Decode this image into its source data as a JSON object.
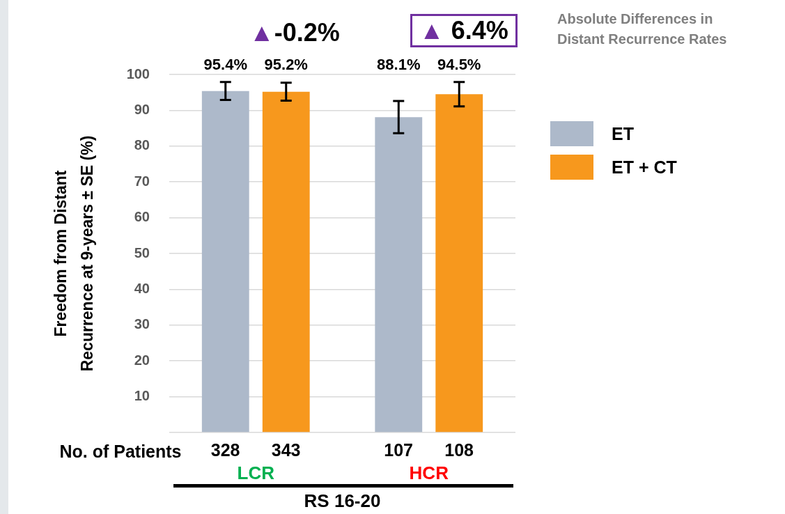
{
  "chart_data": {
    "type": "bar",
    "xlabel": "RS 16-20",
    "ylabel": "Freedom from Distant\nRecurrence at 9-years ± SE (%)",
    "categories": [
      "LCR",
      "HCR"
    ],
    "series": [
      {
        "name": "ET",
        "color": "#adb9ca",
        "values": [
          95.4,
          88.1
        ],
        "errors": [
          2.5,
          4.5
        ],
        "value_labels": [
          "95.4%",
          "88.1%"
        ]
      },
      {
        "name": "ET + CT",
        "color": "#f7981d",
        "values": [
          95.2,
          94.5
        ],
        "errors": [
          2.5,
          3.4
        ],
        "value_labels": [
          "95.2%",
          "94.5%"
        ]
      }
    ],
    "ylim": [
      0,
      100
    ],
    "yticks": [
      {
        "value": 0,
        "label": null
      },
      10,
      20,
      30,
      40,
      50,
      60,
      70,
      80,
      90,
      100
    ],
    "grid": "y",
    "legend": "right",
    "annotations": [
      "▲-0.2%",
      "▲ 6.4%",
      "Absolute Differences in\nDistant Recurrence Rates",
      "No. of Patients",
      "328",
      "343",
      "107",
      "108"
    ]
  }
}
